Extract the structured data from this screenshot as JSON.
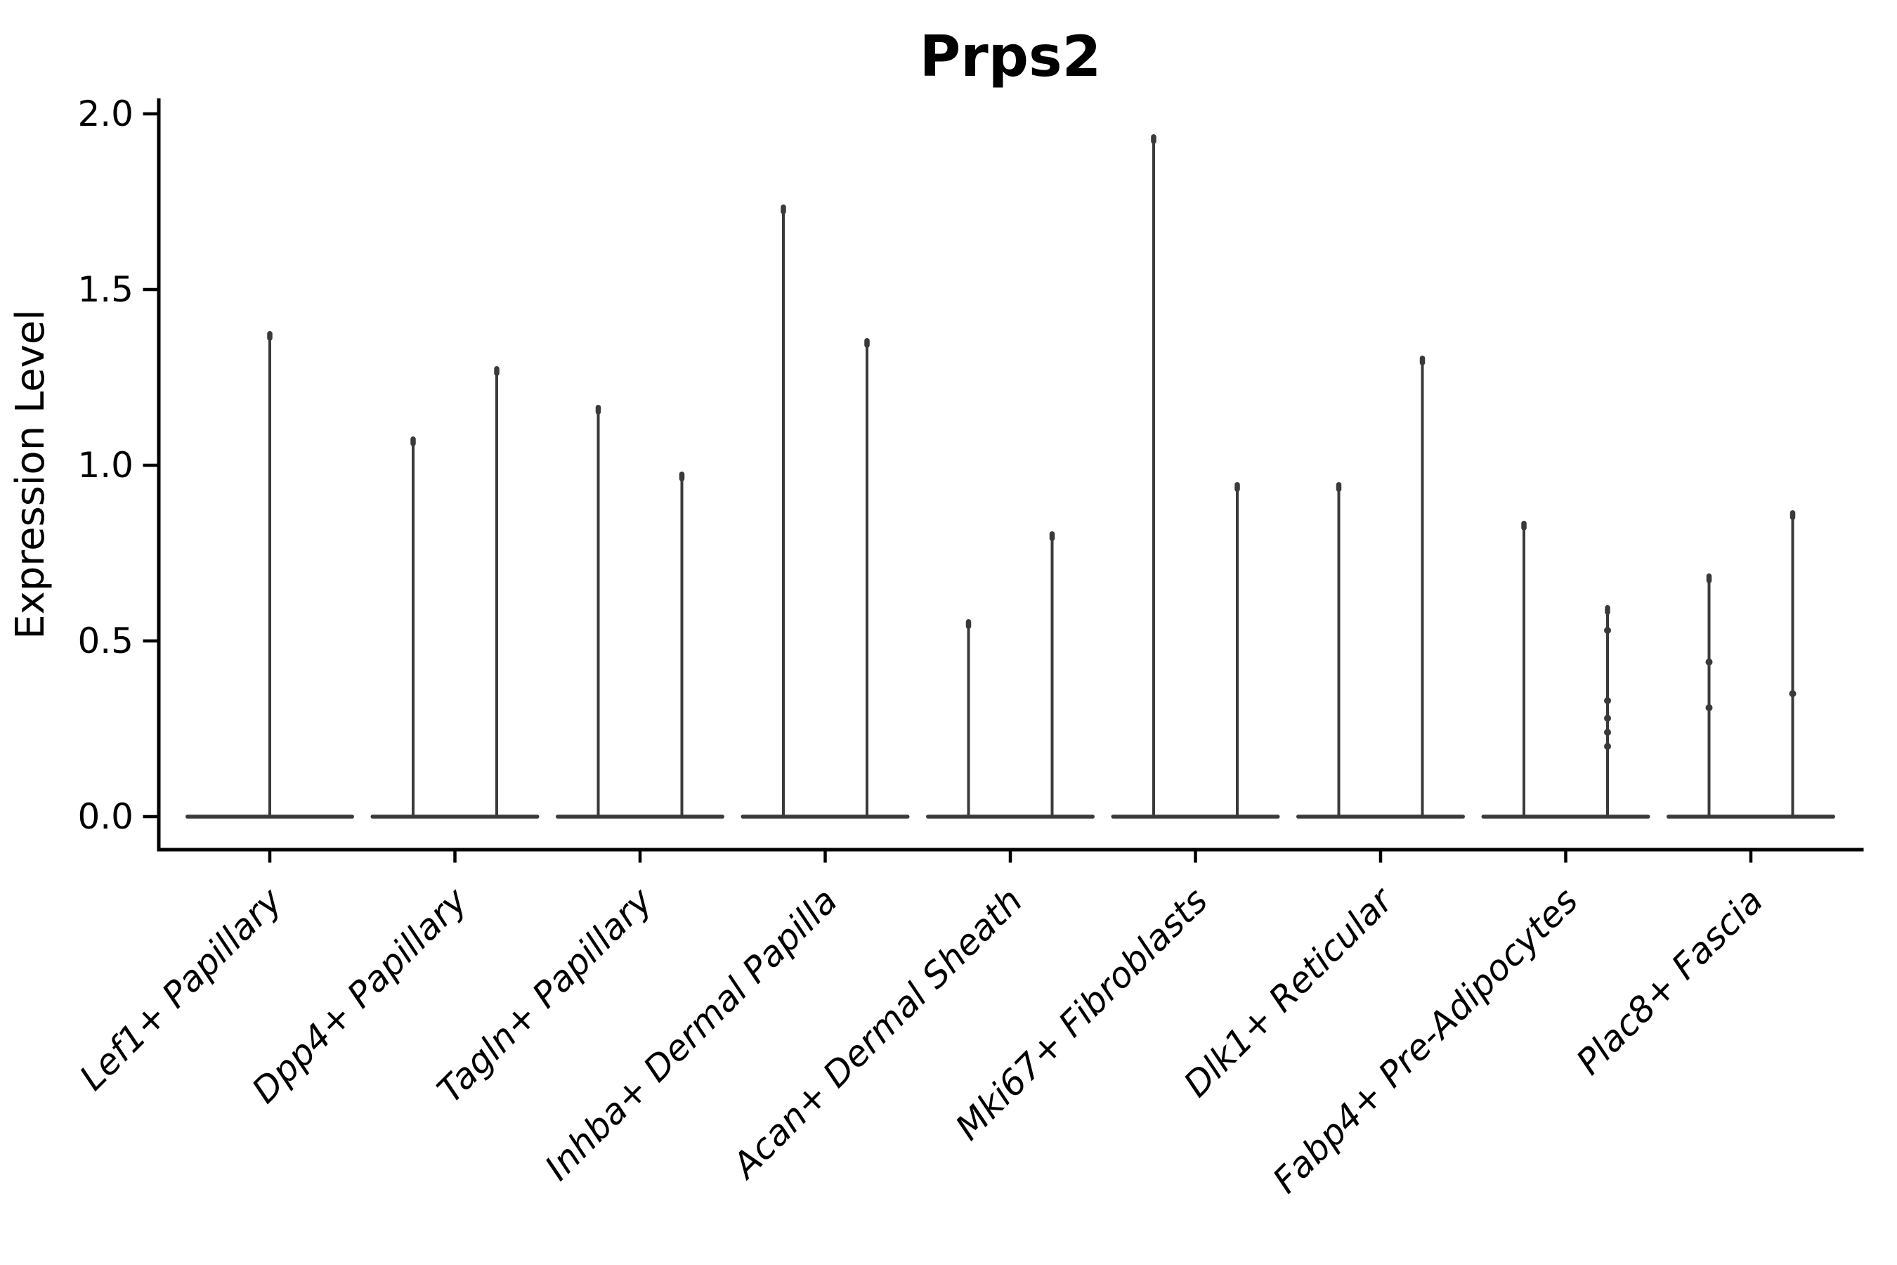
{
  "title": "Prps2",
  "chart_data": {
    "type": "violin",
    "title": "Prps2",
    "xlabel": "",
    "ylabel": "Expression Level",
    "ylim": [
      -0.1,
      2.05
    ],
    "yticks": [
      {
        "label": "0.0",
        "value": 0.0
      },
      {
        "label": "0.5",
        "value": 0.5
      },
      {
        "label": "1.0",
        "value": 1.0
      },
      {
        "label": "1.5",
        "value": 1.5
      },
      {
        "label": "2.0",
        "value": 2.0
      }
    ],
    "grid": false,
    "legend_position": "none",
    "violin_color": "#3a3a3a",
    "axis_color": "#000000",
    "categories": [
      {
        "label": "Lef1+ Papillary",
        "violins": [
          {
            "side": "center",
            "max": 1.38,
            "points": []
          }
        ]
      },
      {
        "label": "Dpp4+ Papillary",
        "violins": [
          {
            "side": "left",
            "max": 1.08,
            "points": []
          },
          {
            "side": "right",
            "max": 1.28,
            "points": []
          }
        ]
      },
      {
        "label": "Tagln+ Papillary",
        "violins": [
          {
            "side": "left",
            "max": 1.17,
            "points": []
          },
          {
            "side": "right",
            "max": 0.98,
            "points": []
          }
        ]
      },
      {
        "label": "Inhba+ Dermal Papilla",
        "violins": [
          {
            "side": "left",
            "max": 1.74,
            "points": []
          },
          {
            "side": "right",
            "max": 1.36,
            "points": []
          }
        ]
      },
      {
        "label": "Acan+ Dermal Sheath",
        "violins": [
          {
            "side": "left",
            "max": 0.56,
            "points": []
          },
          {
            "side": "right",
            "max": 0.81,
            "points": []
          }
        ]
      },
      {
        "label": "Mki67+ Fibroblasts",
        "violins": [
          {
            "side": "left",
            "max": 1.94,
            "points": []
          },
          {
            "side": "right",
            "max": 0.95,
            "points": []
          }
        ]
      },
      {
        "label": "Dlk1+ Reticular",
        "violins": [
          {
            "side": "left",
            "max": 0.95,
            "points": []
          },
          {
            "side": "right",
            "max": 1.31,
            "points": []
          }
        ]
      },
      {
        "label": "Fabp4+ Pre-Adipocytes",
        "violins": [
          {
            "side": "left",
            "max": 0.84,
            "points": []
          },
          {
            "side": "right",
            "max": 0.6,
            "points": [
              0.53,
              0.33,
              0.28,
              0.24,
              0.2
            ]
          }
        ]
      },
      {
        "label": "Plac8+ Fascia",
        "violins": [
          {
            "side": "left",
            "max": 0.69,
            "points": [
              0.44,
              0.31
            ]
          },
          {
            "side": "right",
            "max": 0.87,
            "points": [
              0.35
            ]
          }
        ]
      }
    ]
  }
}
